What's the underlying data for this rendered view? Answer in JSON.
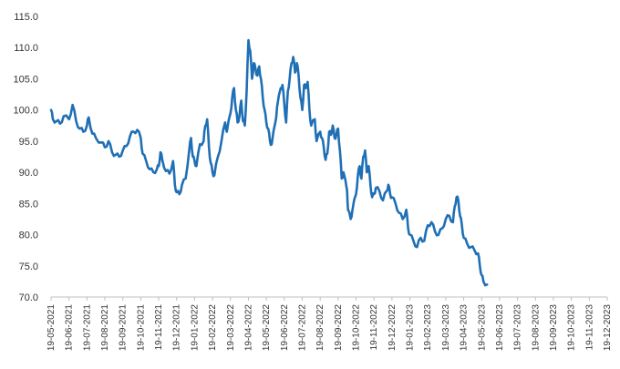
{
  "chart_data": {
    "type": "line",
    "title": "",
    "xlabel": "",
    "ylabel": "",
    "ylim": [
      70,
      115
    ],
    "yticks": [
      "70.0",
      "75.0",
      "80.0",
      "85.0",
      "90.0",
      "95.0",
      "100.0",
      "105.0",
      "110.0",
      "115.0"
    ],
    "xticks": [
      "19-05-2021",
      "19-06-2021",
      "19-07-2021",
      "19-08-2021",
      "19-09-2021",
      "19-10-2021",
      "19-11-2021",
      "19-12-2021",
      "19-01-2022",
      "19-02-2022",
      "19-03-2022",
      "19-04-2022",
      "19-05-2022",
      "19-06-2022",
      "19-07-2022",
      "19-08-2022",
      "19-09-2022",
      "19-10-2022",
      "19-11-2022",
      "19-12-2022",
      "19-01-2023",
      "19-02-2023",
      "19-03-2023",
      "19-04-2023",
      "19-05-2023",
      "19-06-2023",
      "19-07-2023",
      "19-08-2023",
      "19-09-2023",
      "19-10-2023",
      "19-11-2023",
      "19-12-2023"
    ],
    "grid": false,
    "legend": "none",
    "line_color": "#1f6fb5",
    "series": [
      {
        "name": "",
        "values": [
          [
            0.0,
            100.0
          ],
          [
            0.1,
            98.5
          ],
          [
            0.3,
            98.2
          ],
          [
            0.5,
            97.8
          ],
          [
            0.7,
            99.0
          ],
          [
            1.0,
            98.5
          ],
          [
            1.2,
            100.8
          ],
          [
            1.4,
            98.2
          ],
          [
            1.6,
            97.0
          ],
          [
            1.8,
            96.5
          ],
          [
            2.0,
            97.5
          ],
          [
            2.1,
            98.8
          ],
          [
            2.3,
            96.2
          ],
          [
            2.5,
            95.5
          ],
          [
            2.8,
            94.8
          ],
          [
            3.0,
            94.0
          ],
          [
            3.2,
            95.0
          ],
          [
            3.4,
            93.2
          ],
          [
            3.6,
            92.8
          ],
          [
            3.8,
            92.5
          ],
          [
            4.0,
            93.5
          ],
          [
            4.2,
            94.2
          ],
          [
            4.4,
            95.8
          ],
          [
            4.6,
            96.5
          ],
          [
            4.8,
            96.8
          ],
          [
            5.0,
            95.5
          ],
          [
            5.1,
            93.0
          ],
          [
            5.3,
            91.8
          ],
          [
            5.5,
            90.5
          ],
          [
            5.7,
            90.0
          ],
          [
            5.9,
            90.5
          ],
          [
            6.0,
            91.0
          ],
          [
            6.1,
            93.2
          ],
          [
            6.2,
            92.0
          ],
          [
            6.4,
            90.2
          ],
          [
            6.6,
            89.8
          ],
          [
            6.8,
            91.8
          ],
          [
            6.9,
            88.0
          ],
          [
            7.0,
            86.8
          ],
          [
            7.15,
            86.5
          ],
          [
            7.3,
            88.0
          ],
          [
            7.5,
            89.0
          ],
          [
            7.7,
            93.5
          ],
          [
            7.8,
            95.5
          ],
          [
            7.9,
            92.5
          ],
          [
            8.0,
            91.8
          ],
          [
            8.1,
            91.0
          ],
          [
            8.3,
            94.5
          ],
          [
            8.5,
            95.0
          ],
          [
            8.6,
            97.5
          ],
          [
            8.7,
            98.5
          ],
          [
            8.8,
            94.0
          ],
          [
            8.9,
            91.5
          ],
          [
            9.0,
            90.0
          ],
          [
            9.1,
            89.5
          ],
          [
            9.3,
            92.5
          ],
          [
            9.5,
            95.0
          ],
          [
            9.7,
            98.0
          ],
          [
            9.8,
            96.5
          ],
          [
            10.0,
            99.5
          ],
          [
            10.1,
            102.0
          ],
          [
            10.2,
            103.5
          ],
          [
            10.3,
            100.0
          ],
          [
            10.4,
            98.0
          ],
          [
            10.5,
            99.0
          ],
          [
            10.6,
            101.5
          ],
          [
            10.7,
            98.2
          ],
          [
            10.8,
            97.5
          ],
          [
            10.9,
            103.0
          ],
          [
            11.0,
            111.2
          ],
          [
            11.1,
            109.5
          ],
          [
            11.2,
            105.0
          ],
          [
            11.3,
            107.5
          ],
          [
            11.4,
            106.5
          ],
          [
            11.5,
            105.5
          ],
          [
            11.6,
            107.0
          ],
          [
            11.7,
            105.0
          ],
          [
            11.8,
            102.0
          ],
          [
            11.9,
            100.0
          ],
          [
            12.0,
            98.0
          ],
          [
            12.1,
            97.0
          ],
          [
            12.2,
            95.0
          ],
          [
            12.3,
            94.5
          ],
          [
            12.5,
            98.0
          ],
          [
            12.6,
            100.5
          ],
          [
            12.8,
            103.5
          ],
          [
            12.9,
            104.0
          ],
          [
            13.0,
            101.0
          ],
          [
            13.1,
            98.0
          ],
          [
            13.2,
            103.0
          ],
          [
            13.3,
            105.0
          ],
          [
            13.4,
            107.5
          ],
          [
            13.5,
            108.5
          ],
          [
            13.6,
            106.0
          ],
          [
            13.7,
            107.5
          ],
          [
            13.8,
            105.5
          ],
          [
            13.9,
            102.0
          ],
          [
            14.0,
            100.0
          ],
          [
            14.1,
            104.0
          ],
          [
            14.2,
            103.5
          ],
          [
            14.3,
            104.5
          ],
          [
            14.4,
            100.0
          ],
          [
            14.5,
            97.5
          ],
          [
            14.7,
            98.5
          ],
          [
            14.8,
            95.0
          ],
          [
            15.0,
            96.5
          ],
          [
            15.1,
            95.5
          ],
          [
            15.2,
            94.0
          ],
          [
            15.3,
            92.0
          ],
          [
            15.4,
            93.0
          ],
          [
            15.5,
            96.5
          ],
          [
            15.6,
            96.0
          ],
          [
            15.7,
            97.5
          ],
          [
            15.8,
            95.5
          ],
          [
            15.9,
            96.0
          ],
          [
            16.0,
            97.0
          ],
          [
            16.1,
            93.5
          ],
          [
            16.2,
            89.0
          ],
          [
            16.3,
            90.0
          ],
          [
            16.5,
            87.0
          ],
          [
            16.55,
            84.0
          ],
          [
            16.7,
            82.5
          ],
          [
            16.8,
            84.0
          ],
          [
            17.0,
            86.5
          ],
          [
            17.1,
            89.5
          ],
          [
            17.2,
            91.0
          ],
          [
            17.3,
            89.0
          ],
          [
            17.4,
            92.5
          ],
          [
            17.5,
            93.5
          ],
          [
            17.6,
            90.0
          ],
          [
            17.7,
            91.0
          ],
          [
            17.8,
            88.0
          ],
          [
            17.9,
            86.0
          ],
          [
            18.0,
            86.5
          ],
          [
            18.1,
            87.5
          ],
          [
            18.3,
            87.0
          ],
          [
            18.5,
            85.5
          ],
          [
            18.7,
            87.0
          ],
          [
            18.8,
            88.0
          ],
          [
            18.9,
            86.5
          ],
          [
            19.0,
            86.0
          ],
          [
            19.2,
            85.0
          ],
          [
            19.4,
            83.5
          ],
          [
            19.6,
            82.5
          ],
          [
            19.8,
            84.0
          ],
          [
            19.9,
            81.0
          ],
          [
            20.0,
            80.0
          ],
          [
            20.2,
            79.0
          ],
          [
            20.4,
            78.0
          ],
          [
            20.6,
            79.5
          ],
          [
            20.8,
            79.0
          ],
          [
            21.0,
            81.5
          ],
          [
            21.2,
            82.0
          ],
          [
            21.4,
            80.5
          ],
          [
            21.6,
            80.0
          ],
          [
            21.8,
            81.0
          ],
          [
            22.0,
            82.5
          ],
          [
            22.2,
            83.0
          ],
          [
            22.4,
            82.0
          ],
          [
            22.5,
            84.5
          ],
          [
            22.6,
            86.0
          ],
          [
            22.7,
            85.5
          ],
          [
            22.8,
            83.0
          ],
          [
            22.9,
            81.5
          ],
          [
            23.0,
            79.5
          ],
          [
            23.2,
            78.5
          ],
          [
            23.4,
            78.0
          ],
          [
            23.6,
            77.5
          ],
          [
            23.8,
            77.0
          ],
          [
            23.9,
            75.0
          ],
          [
            24.0,
            73.5
          ],
          [
            24.1,
            72.5
          ],
          [
            24.3,
            72.0
          ]
        ]
      }
    ]
  }
}
